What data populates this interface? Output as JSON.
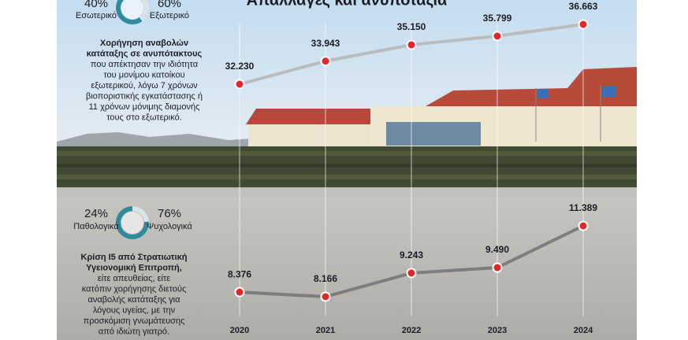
{
  "chart_data": [
    {
      "type": "line",
      "title": "Απαλλαγές και ανυποταξία",
      "categories": [
        "2020",
        "2021",
        "2022",
        "2023",
        "2024"
      ],
      "marker_color": "#e3262b",
      "series": [
        {
          "color": "#b9bcbf",
          "values": [
            32230,
            33943,
            35150,
            35799,
            36663
          ],
          "value_labels": [
            "32.230",
            "33.943",
            "35.150",
            "35.799",
            "36.663"
          ]
        },
        {
          "color": "#7d7d7d",
          "values": [
            8376,
            8166,
            9243,
            9490,
            11389
          ],
          "value_labels": [
            "8.376",
            "8.166",
            "9.243",
            "9.490",
            "11.389"
          ]
        }
      ]
    },
    {
      "type": "pie",
      "categories": [
        "Εσωτερικό",
        "Εξωτερικό"
      ],
      "values": [
        40,
        60
      ],
      "value_labels": [
        "40%",
        "60%"
      ],
      "colors": [
        "#d9e3e8",
        "#2f8a9c"
      ]
    },
    {
      "type": "pie",
      "categories": [
        "Παθολογικά",
        "Ψυχολογικά"
      ],
      "values": [
        24,
        76
      ],
      "value_labels": [
        "24%",
        "76%"
      ],
      "colors": [
        "#d9e3e8",
        "#2f8a9c"
      ]
    }
  ],
  "notes": [
    {
      "heading": [
        "Χορήγηση αναβολών",
        "κατάταξης σε ανυπότακτους"
      ],
      "body": [
        "που απέκτησαν την ιδιότητα",
        "του μονίμου κατοίκου",
        "εξωτερικού, λόγω 7 χρόνων",
        "βιοποριστικής εγκατάστασης ή",
        "11 χρόνων μόνιμης διαμονής",
        "τους στο εξωτερικό."
      ]
    },
    {
      "heading": [
        "Κρίση Ι5 από Στρατιωτική",
        "Υγειονομική Επιτροπή,"
      ],
      "body": [
        "είτε απευθείας, είτε",
        "κατόπιν χορήγησης διετούς",
        "αναβολής κατάταξης για",
        "λόγους υγείας, με την",
        "προσκόμιση γνωμάτευσης",
        "από ιδιώτη γιατρό."
      ]
    }
  ]
}
